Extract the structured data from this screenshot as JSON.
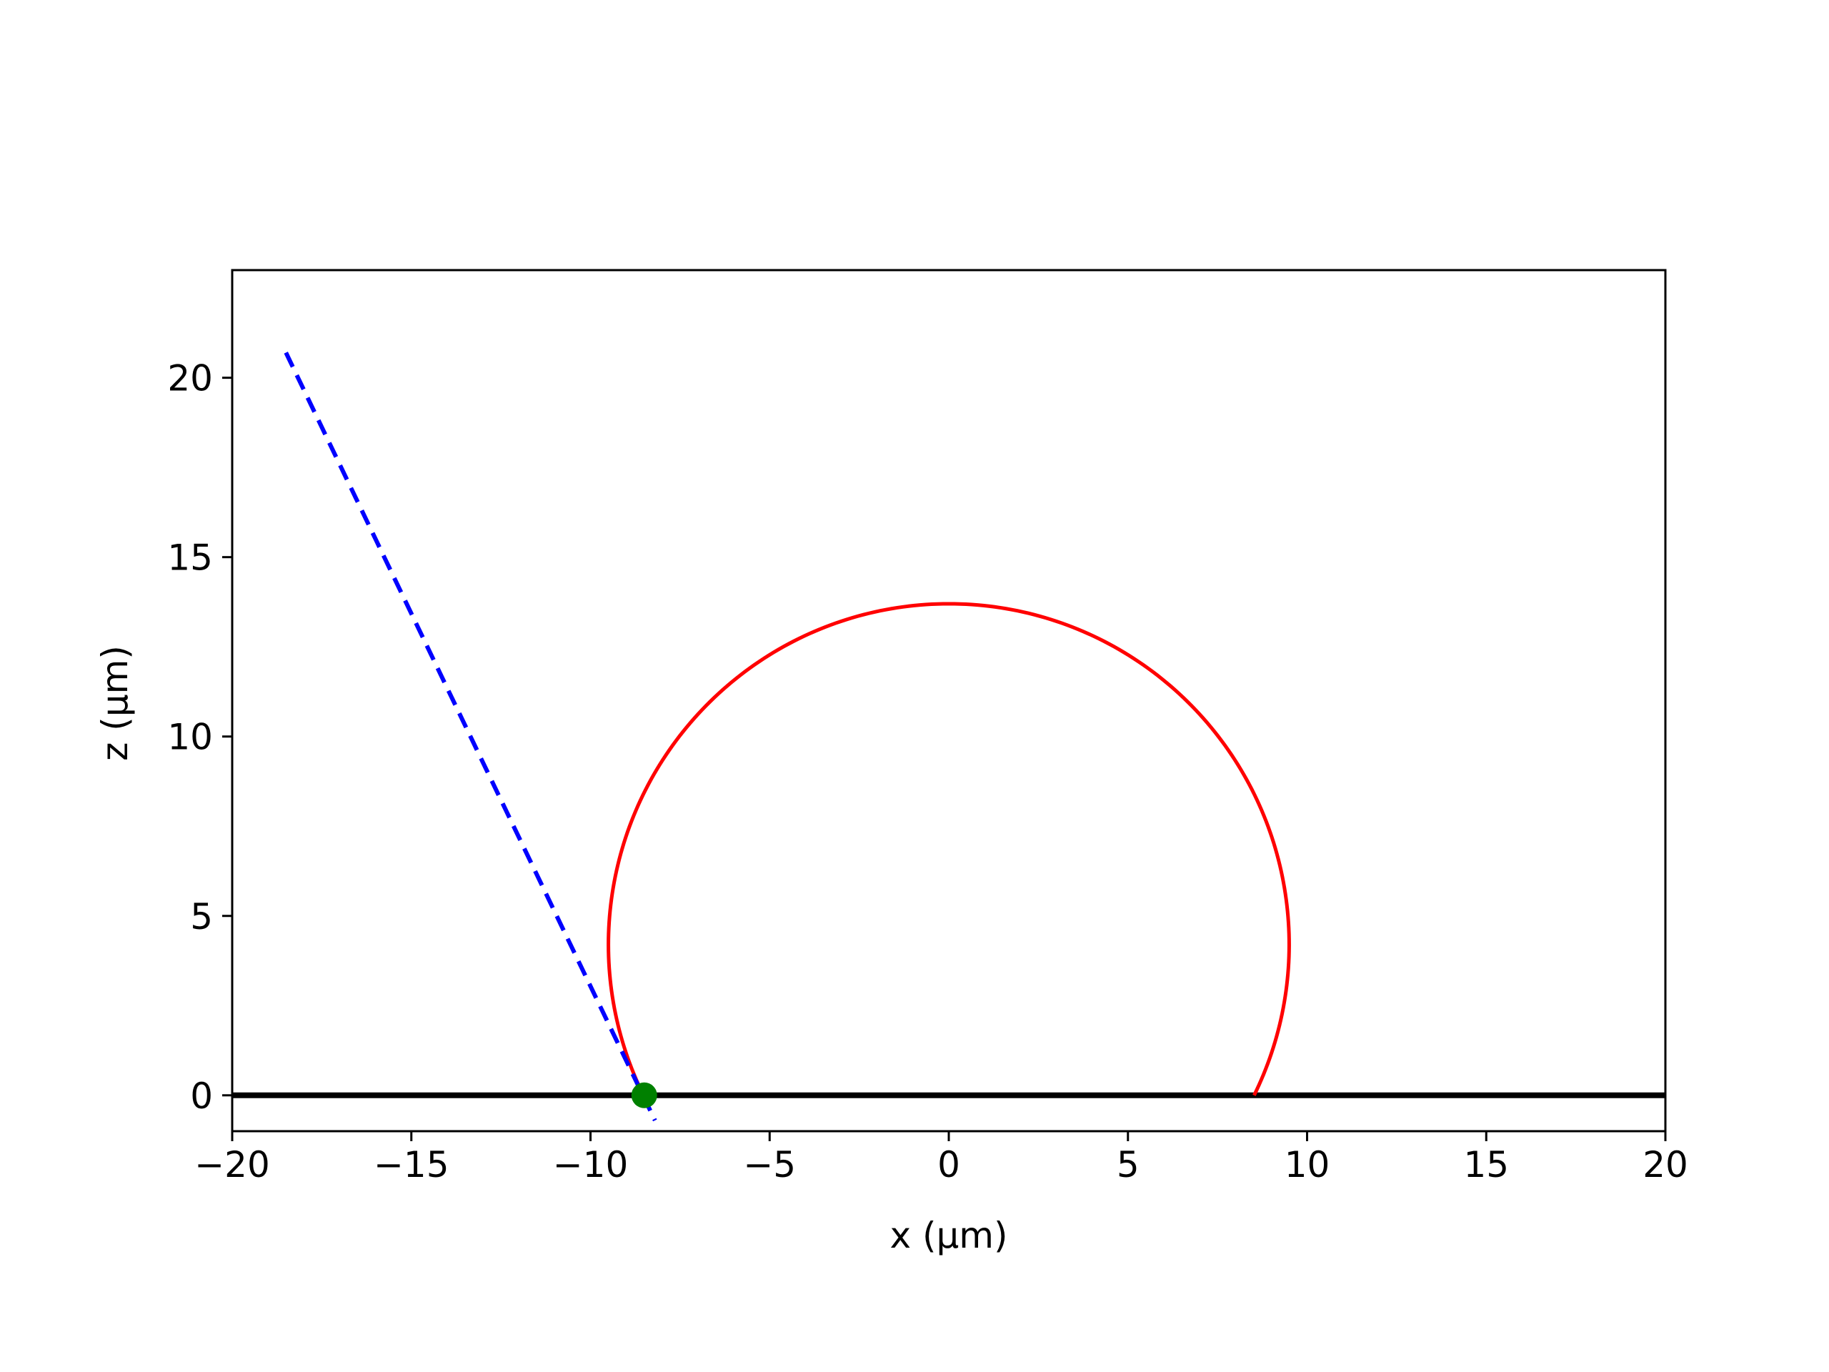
{
  "chart_data": {
    "type": "line",
    "title": "",
    "xlabel": "x (µm)",
    "ylabel": "z (µm)",
    "xlim": [
      -20,
      20
    ],
    "ylim": [
      -1,
      23
    ],
    "x_ticks": [
      -20,
      -15,
      -10,
      -5,
      0,
      5,
      10,
      15,
      20
    ],
    "x_tick_labels": [
      "−20",
      "−15",
      "−10",
      "−5",
      "0",
      "5",
      "10",
      "15",
      "20"
    ],
    "y_ticks": [
      0,
      5,
      10,
      15,
      20
    ],
    "y_tick_labels": [
      "0",
      "5",
      "10",
      "15",
      "20"
    ],
    "grid": false,
    "legend": "none",
    "series": [
      {
        "kind": "substrate-line",
        "color": "#000000",
        "x": [
          -20,
          20
        ],
        "y": [
          0,
          0
        ]
      },
      {
        "kind": "droplet-arc",
        "color": "#ff0000",
        "center": [
          0,
          4.2
        ],
        "radius": 9.5,
        "z_min": 0
      },
      {
        "kind": "tangent-line",
        "color": "#0000ff",
        "linestyle": "dashed",
        "x": [
          -18.5,
          -8.2
        ],
        "y": [
          20.7,
          -0.7
        ]
      },
      {
        "kind": "contact-point",
        "color": "#008000",
        "x": [
          -8.5
        ],
        "y": [
          0
        ]
      }
    ]
  }
}
